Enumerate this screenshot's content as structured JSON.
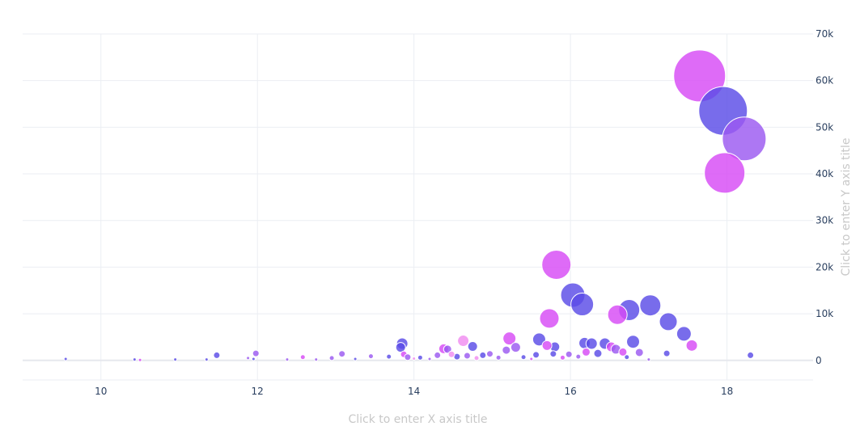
{
  "chart_data": {
    "type": "scatter",
    "title": "",
    "xlabel": "Click to enter X axis title",
    "ylabel": "Click to enter Y axis title",
    "xlim": [
      9,
      19.1
    ],
    "ylim": [
      -4200,
      70000
    ],
    "x_ticks": [
      10,
      12,
      14,
      16,
      18
    ],
    "y_ticks": [
      0,
      10000,
      20000,
      30000,
      40000,
      50000,
      60000,
      70000
    ],
    "y_tick_labels": [
      "0",
      "10k",
      "20k",
      "30k",
      "40k",
      "50k",
      "60k",
      "70k"
    ],
    "y_axis_side": "right",
    "grid": true,
    "legend": "none",
    "colors": {
      "violet": "#9b59f0",
      "magenta": "#d74bf5",
      "blue": "#5a4ce6",
      "pink": "#f08cf0"
    },
    "points": [
      {
        "x": 17.65,
        "y": 61000,
        "size": 32,
        "color": "magenta"
      },
      {
        "x": 17.95,
        "y": 53500,
        "size": 30,
        "color": "blue"
      },
      {
        "x": 18.22,
        "y": 47500,
        "size": 27,
        "color": "violet"
      },
      {
        "x": 17.97,
        "y": 40200,
        "size": 25,
        "color": "magenta"
      },
      {
        "x": 15.82,
        "y": 20500,
        "size": 18,
        "color": "magenta"
      },
      {
        "x": 16.03,
        "y": 14000,
        "size": 15,
        "color": "blue"
      },
      {
        "x": 16.15,
        "y": 12000,
        "size": 14,
        "color": "blue"
      },
      {
        "x": 16.75,
        "y": 10800,
        "size": 13,
        "color": "blue"
      },
      {
        "x": 17.02,
        "y": 11800,
        "size": 13,
        "color": "blue"
      },
      {
        "x": 16.6,
        "y": 9800,
        "size": 12,
        "color": "magenta"
      },
      {
        "x": 15.73,
        "y": 9000,
        "size": 12,
        "color": "magenta"
      },
      {
        "x": 17.25,
        "y": 8300,
        "size": 11,
        "color": "blue"
      },
      {
        "x": 17.45,
        "y": 5700,
        "size": 9,
        "color": "blue"
      },
      {
        "x": 17.55,
        "y": 3200,
        "size": 7,
        "color": "magenta"
      },
      {
        "x": 16.8,
        "y": 4000,
        "size": 8,
        "color": "blue"
      },
      {
        "x": 15.6,
        "y": 4500,
        "size": 8,
        "color": "blue"
      },
      {
        "x": 15.22,
        "y": 4700,
        "size": 8,
        "color": "magenta"
      },
      {
        "x": 14.63,
        "y": 4200,
        "size": 7,
        "color": "pink"
      },
      {
        "x": 14.75,
        "y": 3000,
        "size": 6,
        "color": "blue"
      },
      {
        "x": 13.85,
        "y": 3600,
        "size": 7,
        "color": "blue"
      },
      {
        "x": 13.83,
        "y": 2800,
        "size": 6,
        "color": "blue"
      },
      {
        "x": 14.38,
        "y": 2500,
        "size": 6,
        "color": "magenta"
      },
      {
        "x": 14.43,
        "y": 2400,
        "size": 5,
        "color": "violet"
      },
      {
        "x": 15.3,
        "y": 2800,
        "size": 6,
        "color": "violet"
      },
      {
        "x": 15.8,
        "y": 2900,
        "size": 6,
        "color": "blue"
      },
      {
        "x": 15.7,
        "y": 3200,
        "size": 6,
        "color": "magenta"
      },
      {
        "x": 16.18,
        "y": 3700,
        "size": 7,
        "color": "blue"
      },
      {
        "x": 16.27,
        "y": 3600,
        "size": 7,
        "color": "blue"
      },
      {
        "x": 16.44,
        "y": 3600,
        "size": 7,
        "color": "blue"
      },
      {
        "x": 16.52,
        "y": 2900,
        "size": 6,
        "color": "magenta"
      },
      {
        "x": 16.58,
        "y": 2400,
        "size": 6,
        "color": "violet"
      },
      {
        "x": 16.67,
        "y": 1800,
        "size": 5,
        "color": "magenta"
      },
      {
        "x": 16.35,
        "y": 1500,
        "size": 5,
        "color": "blue"
      },
      {
        "x": 16.2,
        "y": 1800,
        "size": 5,
        "color": "magenta"
      },
      {
        "x": 15.18,
        "y": 2200,
        "size": 5,
        "color": "violet"
      },
      {
        "x": 15.56,
        "y": 1200,
        "size": 4,
        "color": "blue"
      },
      {
        "x": 15.78,
        "y": 1400,
        "size": 4,
        "color": "blue"
      },
      {
        "x": 15.98,
        "y": 1300,
        "size": 4,
        "color": "violet"
      },
      {
        "x": 16.88,
        "y": 1700,
        "size": 5,
        "color": "violet"
      },
      {
        "x": 17.23,
        "y": 1500,
        "size": 4,
        "color": "blue"
      },
      {
        "x": 18.3,
        "y": 1100,
        "size": 4,
        "color": "blue"
      },
      {
        "x": 14.97,
        "y": 1400,
        "size": 4,
        "color": "violet"
      },
      {
        "x": 14.88,
        "y": 1100,
        "size": 4,
        "color": "blue"
      },
      {
        "x": 14.68,
        "y": 1000,
        "size": 4,
        "color": "violet"
      },
      {
        "x": 14.55,
        "y": 800,
        "size": 4,
        "color": "blue"
      },
      {
        "x": 14.3,
        "y": 1100,
        "size": 4,
        "color": "violet"
      },
      {
        "x": 14.08,
        "y": 600,
        "size": 3,
        "color": "blue"
      },
      {
        "x": 13.87,
        "y": 1300,
        "size": 4,
        "color": "magenta"
      },
      {
        "x": 13.92,
        "y": 700,
        "size": 4,
        "color": "violet"
      },
      {
        "x": 13.68,
        "y": 800,
        "size": 3,
        "color": "blue"
      },
      {
        "x": 13.45,
        "y": 900,
        "size": 3,
        "color": "violet"
      },
      {
        "x": 13.08,
        "y": 1400,
        "size": 4,
        "color": "violet"
      },
      {
        "x": 12.95,
        "y": 500,
        "size": 3,
        "color": "violet"
      },
      {
        "x": 12.58,
        "y": 700,
        "size": 3,
        "color": "magenta"
      },
      {
        "x": 12.38,
        "y": 200,
        "size": 2,
        "color": "violet"
      },
      {
        "x": 11.98,
        "y": 1500,
        "size": 4,
        "color": "violet"
      },
      {
        "x": 11.95,
        "y": 300,
        "size": 2,
        "color": "blue"
      },
      {
        "x": 11.88,
        "y": 500,
        "size": 2,
        "color": "violet"
      },
      {
        "x": 11.48,
        "y": 1100,
        "size": 4,
        "color": "blue"
      },
      {
        "x": 11.35,
        "y": 200,
        "size": 2,
        "color": "blue"
      },
      {
        "x": 10.95,
        "y": 200,
        "size": 2,
        "color": "blue"
      },
      {
        "x": 10.43,
        "y": 200,
        "size": 2,
        "color": "blue"
      },
      {
        "x": 10.5,
        "y": 100,
        "size": 2,
        "color": "magenta"
      },
      {
        "x": 9.55,
        "y": 300,
        "size": 2,
        "color": "blue"
      },
      {
        "x": 14.0,
        "y": 400,
        "size": 2,
        "color": "pink"
      },
      {
        "x": 14.2,
        "y": 300,
        "size": 2,
        "color": "violet"
      },
      {
        "x": 14.8,
        "y": 500,
        "size": 3,
        "color": "pink"
      },
      {
        "x": 15.08,
        "y": 600,
        "size": 3,
        "color": "violet"
      },
      {
        "x": 15.4,
        "y": 700,
        "size": 3,
        "color": "blue"
      },
      {
        "x": 15.9,
        "y": 600,
        "size": 3,
        "color": "magenta"
      },
      {
        "x": 16.1,
        "y": 800,
        "size": 3,
        "color": "violet"
      },
      {
        "x": 16.72,
        "y": 700,
        "size": 3,
        "color": "blue"
      },
      {
        "x": 17.0,
        "y": 200,
        "size": 2,
        "color": "violet"
      },
      {
        "x": 13.25,
        "y": 300,
        "size": 2,
        "color": "blue"
      },
      {
        "x": 12.75,
        "y": 200,
        "size": 2,
        "color": "violet"
      },
      {
        "x": 14.48,
        "y": 1300,
        "size": 4,
        "color": "pink"
      },
      {
        "x": 15.5,
        "y": 300,
        "size": 2,
        "color": "magenta"
      }
    ]
  }
}
